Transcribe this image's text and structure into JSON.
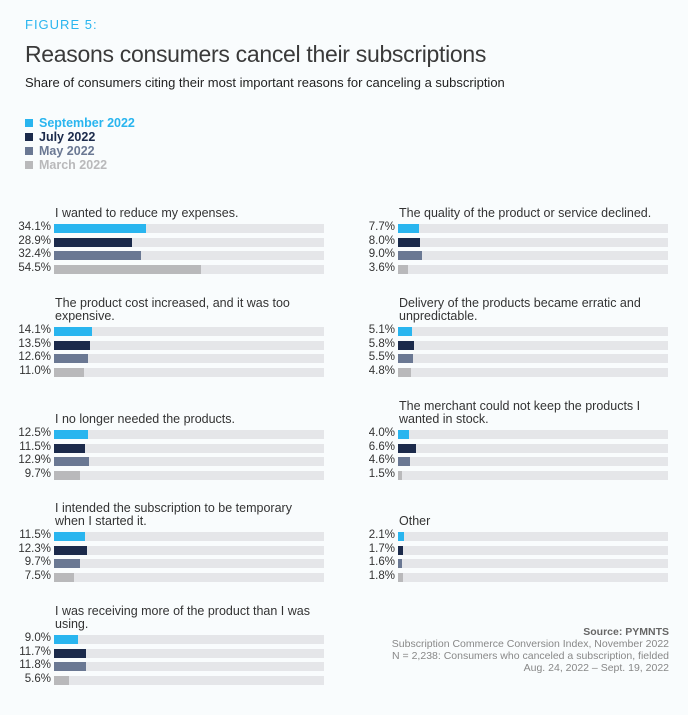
{
  "figure_label": "FIGURE 5:",
  "chart_data": {
    "type": "bar",
    "title": "Reasons consumers cancel their subscriptions",
    "subtitle": "Share of consumers citing their most important reasons for canceling a subscription",
    "unit": "%",
    "xlim": [
      0,
      100
    ],
    "legend_placement": "top-left",
    "series": [
      {
        "name": "September 2022",
        "color": "#29b5ef"
      },
      {
        "name": "July 2022",
        "color": "#1b2a4b"
      },
      {
        "name": "May 2022",
        "color": "#6a7893"
      },
      {
        "name": "March 2022",
        "color": "#b9b9bb"
      }
    ],
    "categories": [
      {
        "label": "I wanted to reduce my expenses.",
        "values": [
          34.1,
          28.9,
          32.4,
          54.5
        ],
        "labels": [
          "34.1%",
          "28.9%",
          "32.4%",
          "54.5%"
        ]
      },
      {
        "label": "The product cost increased, and it was too expensive.",
        "values": [
          14.1,
          13.5,
          12.6,
          11.0
        ],
        "labels": [
          "14.1%",
          "13.5%",
          "12.6%",
          "11.0%"
        ]
      },
      {
        "label": "I no longer needed the products.",
        "values": [
          12.5,
          11.5,
          12.9,
          9.7
        ],
        "labels": [
          "12.5%",
          "11.5%",
          "12.9%",
          "9.7%"
        ]
      },
      {
        "label": "I intended the subscription to be temporary when I started it.",
        "values": [
          11.5,
          12.3,
          9.7,
          7.5
        ],
        "labels": [
          "11.5%",
          "12.3%",
          "9.7%",
          "7.5%"
        ]
      },
      {
        "label": "I was receiving more of the product than I was using.",
        "values": [
          9.0,
          11.7,
          11.8,
          5.6
        ],
        "labels": [
          "9.0%",
          "11.7%",
          "11.8%",
          "5.6%"
        ]
      },
      {
        "label": "The quality of the product or service declined.",
        "values": [
          7.7,
          8.0,
          9.0,
          3.6
        ],
        "labels": [
          "7.7%",
          "8.0%",
          "9.0%",
          "3.6%"
        ]
      },
      {
        "label": "Delivery of the products became erratic and unpredictable.",
        "values": [
          5.1,
          5.8,
          5.5,
          4.8
        ],
        "labels": [
          "5.1%",
          "5.8%",
          "5.5%",
          "4.8%"
        ]
      },
      {
        "label": "The merchant could not keep the products I wanted in stock.",
        "values": [
          4.0,
          6.6,
          4.6,
          1.5
        ],
        "labels": [
          "4.0%",
          "6.6%",
          "4.6%",
          "1.5%"
        ]
      },
      {
        "label": "Other",
        "values": [
          2.1,
          1.7,
          1.6,
          1.8
        ],
        "labels": [
          "2.1%",
          "1.7%",
          "1.6%",
          "1.8%"
        ]
      }
    ]
  },
  "source": {
    "label": "Source: PYMNTS",
    "line1": "Subscription Commerce Conversion Index, November 2022",
    "line2": "N = 2,238: Consumers who canceled a subscription, fielded",
    "line3": "Aug. 24, 2022 – Sept. 19, 2022"
  }
}
